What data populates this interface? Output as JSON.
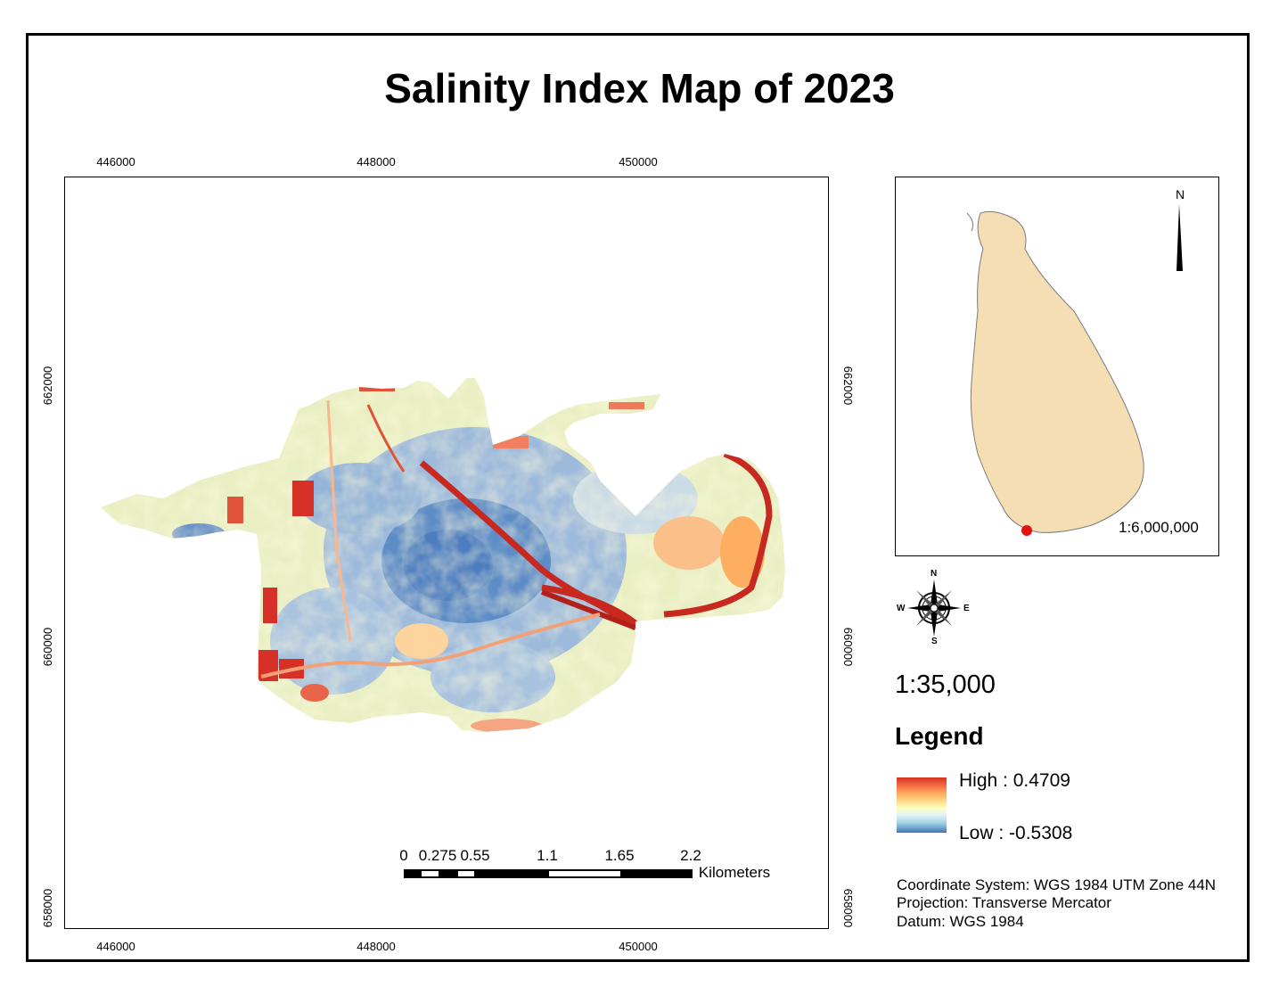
{
  "title": "Salinity Index Map of 2023",
  "x_ticks": [
    "446000",
    "448000",
    "450000"
  ],
  "y_ticks": [
    "662000",
    "660000",
    "658000"
  ],
  "inset": {
    "north_label": "N",
    "scale": "1:6,000,000"
  },
  "compass": {
    "n": "N",
    "s": "S",
    "e": "E",
    "w": "W",
    "icon": "compass-rose-icon"
  },
  "scale_ratio": "1:35,000",
  "legend": {
    "title": "Legend",
    "high": "High : 0.4709",
    "low": "Low : -0.5308",
    "ramp_colors": [
      "#d7301f",
      "#fdae61",
      "#ffffbf",
      "#abd9e9",
      "#4575b4"
    ]
  },
  "scalebar": {
    "labels": [
      "0",
      "0.275",
      "0.55",
      "1.1",
      "1.65",
      "2.2"
    ],
    "units": "Kilometers"
  },
  "coord_info": {
    "line1": "Coordinate System: WGS 1984 UTM Zone 44N",
    "line2": "Projection: Transverse Mercator",
    "line3": "Datum: WGS 1984"
  }
}
